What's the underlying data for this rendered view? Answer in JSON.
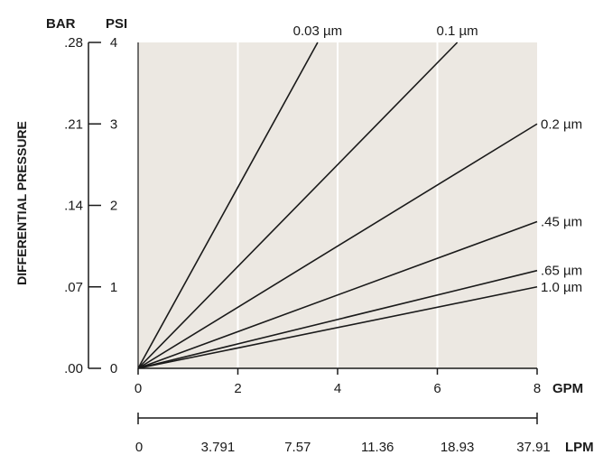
{
  "chart_data": {
    "type": "line",
    "title": "",
    "units": {
      "bar": "BAR",
      "psi": "PSI",
      "gpm": "GPM",
      "lpm": "LPM"
    },
    "ylabel": "DIFFERENTIAL PRESSURE",
    "xlim": [
      0,
      8
    ],
    "ylim": [
      0,
      4
    ],
    "grid": true,
    "background_color": "#ece8e2",
    "line_color": "#1a1a1a",
    "psi_ticks": [
      "0",
      "1",
      "2",
      "3",
      "4"
    ],
    "bar_ticks": [
      ".00",
      ".07",
      ".14",
      ".21",
      ".28"
    ],
    "gpm_ticks": [
      "0",
      "2",
      "4",
      "6",
      "8"
    ],
    "lpm_ticks": [
      "0",
      "3.791",
      "7.57",
      "11.36",
      "18.93",
      "37.91"
    ],
    "series": [
      {
        "name": "0.03 µm",
        "x": [
          0,
          3.6
        ],
        "y": [
          0,
          4.0
        ]
      },
      {
        "name": "0.1 µm",
        "x": [
          0,
          6.4
        ],
        "y": [
          0,
          4.0
        ]
      },
      {
        "name": "0.2 µm",
        "x": [
          0,
          8.0
        ],
        "y": [
          0,
          3.0
        ]
      },
      {
        "name": ".45 µm",
        "x": [
          0,
          8.0
        ],
        "y": [
          0,
          1.8
        ]
      },
      {
        "name": ".65 µm",
        "x": [
          0,
          8.0
        ],
        "y": [
          0,
          1.2
        ]
      },
      {
        "name": "1.0 µm",
        "x": [
          0,
          8.0
        ],
        "y": [
          0,
          1.0
        ]
      }
    ]
  }
}
